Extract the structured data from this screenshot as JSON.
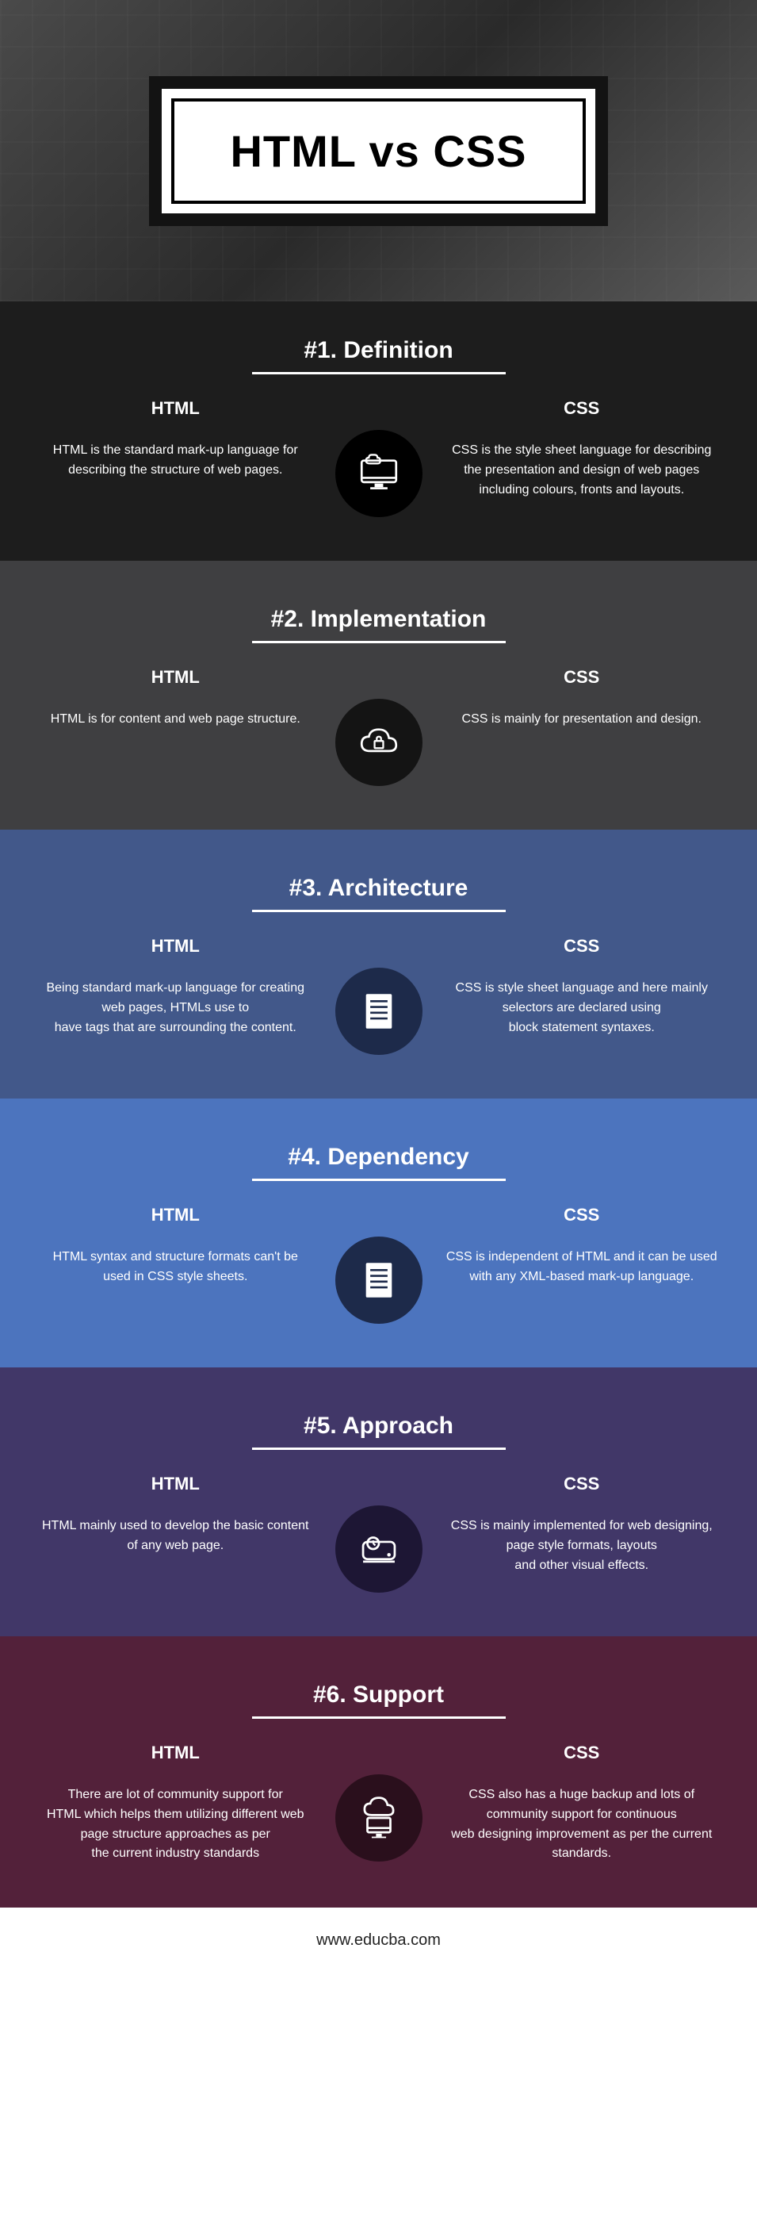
{
  "title": "HTML vs CSS",
  "footer": "www.educba.com",
  "labels": {
    "html": "HTML",
    "css": "CSS"
  },
  "sections": [
    {
      "num": "#1.",
      "name": "Definition",
      "bg": "#1d1d1d",
      "icon_bg": "#000000",
      "icon": "monitor",
      "html": "HTML is the standard mark-up language for describing the structure of web pages.",
      "css": "CSS is the style sheet language for describing the presentation and design of web pages including colours, fronts and layouts."
    },
    {
      "num": "#2.",
      "name": "Implementation",
      "bg": "#3f3f41",
      "icon_bg": "#141414",
      "icon": "cloud-lock",
      "html": "HTML is for content and web page structure.",
      "css": "CSS is mainly for presentation and design."
    },
    {
      "num": "#3.",
      "name": "Architecture",
      "bg": "#42588a",
      "icon_bg": "#1d2a4a",
      "icon": "doc",
      "html": "Being standard mark-up language for creating web pages, HTMLs use to\nhave tags that are surrounding the content.",
      "css": "CSS is style sheet language and here mainly selectors are declared using\nblock statement syntaxes."
    },
    {
      "num": "#4.",
      "name": "Dependency",
      "bg": "#4c74be",
      "icon_bg": "#1d2a4a",
      "icon": "doc",
      "html": "HTML syntax and structure formats can't be used in CSS style sheets.",
      "css": "CSS is independent of HTML and it can be used with any XML-based mark-up language."
    },
    {
      "num": "#5.",
      "name": "Approach",
      "bg": "#413768",
      "icon_bg": "#1d1634",
      "icon": "drive",
      "html": "HTML mainly used to develop the basic content of any web page.",
      "css": "CSS is mainly implemented for web designing, page style formats, layouts\nand other visual effects."
    },
    {
      "num": "#6.",
      "name": "Support",
      "bg": "#53213a",
      "icon_bg": "#2a0f1c",
      "icon": "cloud-monitor",
      "html": "There are lot of community support for\nHTML which helps them utilizing different web page structure  approaches as per\nthe current industry standards",
      "css": "CSS also has a huge backup and lots of community support for continuous\nweb designing improvement as per the current standards."
    }
  ]
}
